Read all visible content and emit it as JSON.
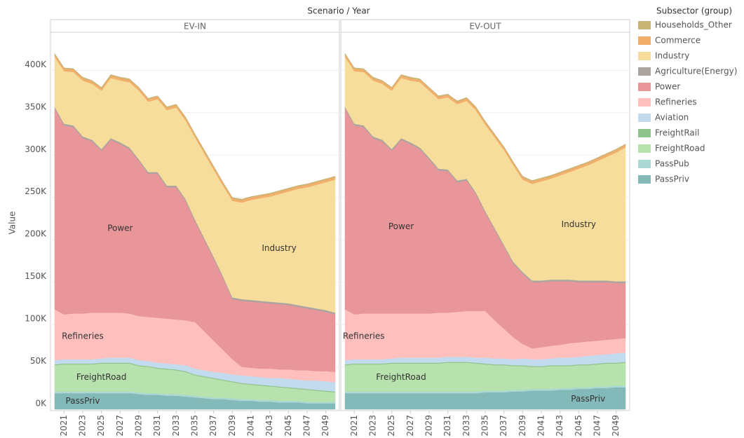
{
  "title": "Scenario / Year",
  "legend": {
    "title": "Subsector (group)",
    "items": [
      {
        "name": "Households_Other",
        "color": "#c8b474"
      },
      {
        "name": "Commerce",
        "color": "#f2ae6b"
      },
      {
        "name": "Industry",
        "color": "#f6dd9b"
      },
      {
        "name": "Agriculture(Energy)",
        "color": "#a9a4a0"
      },
      {
        "name": "Power",
        "color": "#e8969a"
      },
      {
        "name": "Refineries",
        "color": "#ffbfbd"
      },
      {
        "name": "Aviation",
        "color": "#c2dbee"
      },
      {
        "name": "FreightRail",
        "color": "#8fc38c"
      },
      {
        "name": "FreightRoad",
        "color": "#b7e2ad"
      },
      {
        "name": "PassPub",
        "color": "#acd8d4"
      },
      {
        "name": "PassPriv",
        "color": "#83b9b8"
      }
    ]
  },
  "chart_data": [
    {
      "type": "area",
      "title": "EV-IN",
      "y_label": "Value",
      "x": [
        2020,
        2021,
        2022,
        2023,
        2024,
        2025,
        2026,
        2027,
        2028,
        2029,
        2030,
        2031,
        2032,
        2033,
        2034,
        2035,
        2036,
        2037,
        2038,
        2039,
        2040,
        2041,
        2042,
        2043,
        2044,
        2045,
        2046,
        2047,
        2048,
        2049,
        2050
      ],
      "xlim": [
        2020,
        2050
      ],
      "xticks": [
        2021,
        2023,
        2025,
        2027,
        2029,
        2031,
        2033,
        2035,
        2037,
        2039,
        2041,
        2043,
        2045,
        2047,
        2049
      ],
      "ylim": [
        0,
        440000
      ],
      "yticks": [
        {
          "value": 0,
          "label": "0K"
        },
        {
          "value": 50000,
          "label": "50K"
        },
        {
          "value": 100000,
          "label": "100K"
        },
        {
          "value": 150000,
          "label": "150K"
        },
        {
          "value": 200000,
          "label": "200K"
        },
        {
          "value": 250000,
          "label": "250K"
        },
        {
          "value": 300000,
          "label": "300K"
        },
        {
          "value": 350000,
          "label": "350K"
        },
        {
          "value": 400000,
          "label": "400K"
        }
      ],
      "series": [
        {
          "values": [
            1000,
            1000,
            1000,
            1000,
            1000,
            1000,
            1000,
            1000,
            1000,
            1000,
            1000,
            1000,
            1000,
            1000,
            1000,
            1000,
            1000,
            1000,
            1000,
            1000,
            1000,
            1000,
            1000,
            1000,
            1000,
            1000,
            1000,
            1000,
            1000,
            1000,
            1000
          ]
        },
        {
          "values": [
            3000,
            3000,
            3000,
            3000,
            3000,
            3000,
            3000,
            3000,
            3000,
            3000,
            3000,
            3000,
            3000,
            3000,
            3000,
            3000,
            3000,
            3000,
            3000,
            3000,
            3000,
            3000,
            3000,
            3000,
            3000,
            3000,
            3000,
            3000,
            3000,
            3000,
            3000
          ]
        },
        {
          "label": "Industry",
          "values": [
            59000,
            62000,
            63000,
            66000,
            66000,
            69000,
            71000,
            73000,
            77000,
            81000,
            83000,
            86000,
            89000,
            92000,
            93000,
            97000,
            100000,
            103000,
            107000,
            114000,
            114000,
            118000,
            121000,
            124000,
            128000,
            132000,
            137000,
            141000,
            146000,
            151000,
            157000
          ]
        },
        {
          "values": [
            2000,
            2000,
            2000,
            2000,
            2000,
            2000,
            2000,
            2000,
            2000,
            2000,
            2000,
            2000,
            2000,
            2000,
            2000,
            2000,
            2000,
            2000,
            2000,
            2000,
            2000,
            2000,
            2000,
            2000,
            2000,
            2000,
            2000,
            2000,
            2000,
            2000,
            2000
          ]
        },
        {
          "label": "Power",
          "values": [
            237000,
            223000,
            220000,
            207000,
            202000,
            191000,
            204000,
            199000,
            194000,
            183000,
            169000,
            170000,
            155000,
            156000,
            141000,
            119000,
            108000,
            97000,
            85000,
            71000,
            78000,
            78000,
            78000,
            77000,
            77000,
            76000,
            75000,
            73000,
            72000,
            70000,
            68000
          ]
        },
        {
          "label": "Refineries",
          "values": [
            60000,
            53000,
            54000,
            54000,
            55000,
            54000,
            53000,
            53000,
            52000,
            52000,
            52000,
            53000,
            53000,
            53000,
            53000,
            55000,
            46000,
            37000,
            27000,
            18000,
            10000,
            10000,
            10000,
            11000,
            10000,
            11000,
            11000,
            12000,
            11000,
            12000,
            12000
          ]
        },
        {
          "values": [
            5000,
            5000,
            5000,
            5000,
            5000,
            5000,
            6000,
            6000,
            6000,
            6000,
            6000,
            6000,
            6000,
            6000,
            7000,
            7000,
            7000,
            7000,
            8000,
            8000,
            9000,
            9000,
            9000,
            9000,
            10000,
            10000,
            10000,
            10000,
            11000,
            11000,
            11000
          ]
        },
        {
          "values": [
            1000,
            1000,
            1000,
            1000,
            1000,
            1000,
            1000,
            1000,
            1000,
            1000,
            1000,
            1000,
            1000,
            1000,
            1000,
            1000,
            1000,
            1000,
            1000,
            1000,
            1000,
            1000,
            1000,
            1000,
            1000,
            1000,
            1000,
            1000,
            1000,
            1000,
            1000
          ]
        },
        {
          "label": "FreightRoad",
          "values": [
            31000,
            32000,
            32000,
            32000,
            32000,
            33000,
            33000,
            33000,
            33000,
            31000,
            31000,
            29000,
            29000,
            28000,
            27000,
            24000,
            23000,
            22000,
            20000,
            19000,
            18000,
            17000,
            17000,
            16000,
            16000,
            15000,
            14000,
            14000,
            13000,
            12000,
            11000
          ]
        },
        {
          "values": [
            2000,
            2000,
            2000,
            2000,
            2000,
            2000,
            2000,
            2000,
            2000,
            2000,
            2000,
            2000,
            2000,
            2000,
            2000,
            2000,
            2000,
            2000,
            2000,
            2000,
            2000,
            2000,
            2000,
            2000,
            2000,
            2000,
            2000,
            2000,
            2000,
            2000,
            2000
          ]
        },
        {
          "label": "PassPriv",
          "values": [
            19000,
            19000,
            19000,
            19000,
            19000,
            19000,
            19000,
            19000,
            19000,
            18000,
            17000,
            17000,
            16000,
            16000,
            15000,
            14000,
            13000,
            12000,
            12000,
            11000,
            10000,
            10000,
            9000,
            9000,
            8000,
            8000,
            8000,
            7000,
            7000,
            7000,
            7000
          ]
        }
      ]
    },
    {
      "type": "area",
      "title": "EV-OUT",
      "x": [
        2020,
        2021,
        2022,
        2023,
        2024,
        2025,
        2026,
        2027,
        2028,
        2029,
        2030,
        2031,
        2032,
        2033,
        2034,
        2035,
        2036,
        2037,
        2038,
        2039,
        2040,
        2041,
        2042,
        2043,
        2044,
        2045,
        2046,
        2047,
        2048,
        2049,
        2050
      ],
      "xlim": [
        2020,
        2050
      ],
      "xticks": [
        2021,
        2023,
        2025,
        2027,
        2029,
        2031,
        2033,
        2035,
        2037,
        2039,
        2041,
        2043,
        2045,
        2047,
        2049
      ],
      "ylim": [
        0,
        440000
      ],
      "yticks": [
        0,
        50000,
        100000,
        150000,
        200000,
        250000,
        300000,
        350000,
        400000
      ],
      "series": [
        {
          "values": [
            1000,
            1000,
            1000,
            1000,
            1000,
            1000,
            1000,
            1000,
            1000,
            1000,
            1000,
            1000,
            1000,
            1000,
            1000,
            1000,
            1000,
            1000,
            1000,
            1000,
            1000,
            1000,
            1000,
            1000,
            1000,
            1000,
            1000,
            1000,
            1000,
            1000,
            1000
          ]
        },
        {
          "values": [
            3000,
            3000,
            3000,
            3000,
            3000,
            3000,
            3000,
            3000,
            3000,
            3000,
            3000,
            3000,
            3000,
            3000,
            3000,
            3000,
            3000,
            3000,
            3000,
            3000,
            3000,
            3000,
            3000,
            3000,
            3000,
            3000,
            3000,
            3000,
            3000,
            3000,
            3000
          ]
        },
        {
          "label": "Industry",
          "values": [
            59000,
            62000,
            63000,
            66000,
            66000,
            69000,
            71000,
            73000,
            77000,
            79000,
            82000,
            85000,
            90000,
            92000,
            97000,
            102000,
            107000,
            112000,
            114000,
            109000,
            114000,
            117000,
            119000,
            123000,
            127000,
            132000,
            136000,
            141000,
            146000,
            152000,
            158000
          ]
        },
        {
          "values": [
            2000,
            2000,
            2000,
            2000,
            2000,
            2000,
            2000,
            2000,
            2000,
            2000,
            2000,
            2000,
            2000,
            2000,
            2000,
            2000,
            2000,
            2000,
            2000,
            2000,
            2000,
            2000,
            2000,
            2000,
            2000,
            2000,
            2000,
            2000,
            2000,
            2000,
            2000
          ]
        },
        {
          "label": "Power",
          "values": [
            237000,
            223000,
            220000,
            207000,
            203000,
            192000,
            205000,
            200000,
            194000,
            182000,
            168000,
            167000,
            153000,
            154000,
            138000,
            116000,
            107000,
            97000,
            87000,
            83000,
            78000,
            77000,
            76000,
            75000,
            73000,
            71000,
            70000,
            69000,
            68000,
            66000,
            65000
          ]
        },
        {
          "label": "Refineries",
          "values": [
            60000,
            53000,
            54000,
            54000,
            54000,
            53000,
            52000,
            52000,
            52000,
            52000,
            53000,
            52000,
            53000,
            54000,
            55000,
            55000,
            45000,
            35000,
            26000,
            17000,
            13000,
            14000,
            15000,
            15000,
            17000,
            17000,
            17000,
            17000,
            17000,
            17000,
            17000
          ]
        },
        {
          "values": [
            5000,
            5000,
            5000,
            5000,
            5000,
            5000,
            6000,
            6000,
            6000,
            6000,
            6000,
            6000,
            6000,
            6000,
            6000,
            7000,
            7000,
            7000,
            7000,
            8000,
            8000,
            8000,
            8000,
            9000,
            9000,
            9000,
            10000,
            10000,
            10000,
            11000,
            11000
          ]
        },
        {
          "values": [
            1000,
            1000,
            1000,
            1000,
            1000,
            1000,
            1000,
            1000,
            1000,
            1000,
            1000,
            1000,
            1000,
            1000,
            1000,
            1000,
            1000,
            1000,
            1000,
            1000,
            1000,
            1000,
            1000,
            1000,
            1000,
            1000,
            1000,
            1000,
            1000,
            1000,
            1000
          ]
        },
        {
          "label": "FreightRoad",
          "values": [
            31000,
            32000,
            32000,
            32000,
            32000,
            33000,
            33000,
            33000,
            33000,
            33000,
            33000,
            34000,
            34000,
            34000,
            33000,
            31000,
            30000,
            30000,
            28000,
            28000,
            26000,
            26000,
            27000,
            26000,
            26000,
            26000,
            26000,
            26000,
            27000,
            26000,
            27000
          ]
        },
        {
          "values": [
            2000,
            2000,
            2000,
            2000,
            2000,
            2000,
            2000,
            2000,
            2000,
            2000,
            2000,
            2000,
            2000,
            2000,
            2000,
            2000,
            2000,
            2000,
            2000,
            2000,
            2000,
            2000,
            2000,
            2000,
            2000,
            2000,
            2000,
            2000,
            2000,
            2000,
            2000
          ]
        },
        {
          "label": "PassPriv",
          "values": [
            19000,
            19000,
            19000,
            19000,
            19000,
            19000,
            19000,
            19000,
            19000,
            19000,
            19000,
            19000,
            19000,
            19000,
            19000,
            20000,
            20000,
            20000,
            21000,
            21000,
            22000,
            22000,
            22000,
            23000,
            23000,
            24000,
            24000,
            25000,
            25000,
            26000,
            26000
          ]
        }
      ]
    }
  ]
}
